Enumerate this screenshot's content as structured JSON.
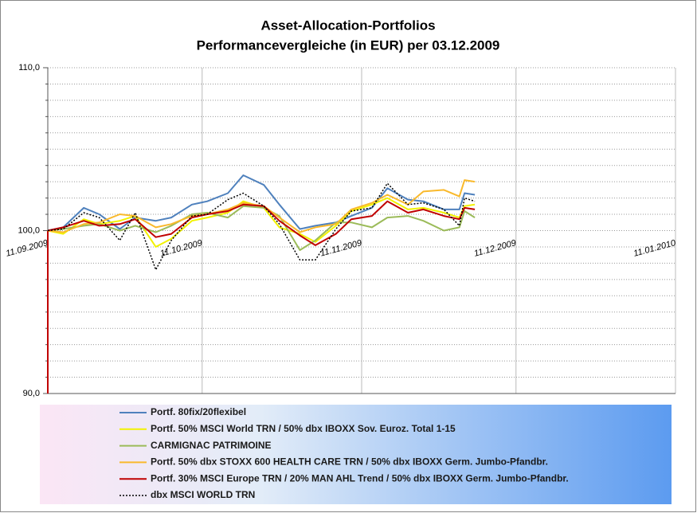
{
  "chart_data": {
    "type": "line",
    "title": "Asset-Allocation-Portfolios",
    "subtitle": "Performancevergleiche (in EUR) per 03.12.2009",
    "x": [
      "11.09.2009",
      "14.09.2009",
      "18.09.2009",
      "21.09.2009",
      "25.09.2009",
      "28.09.2009",
      "02.10.2009",
      "05.10.2009",
      "09.10.2009",
      "12.10.2009",
      "16.10.2009",
      "19.10.2009",
      "23.10.2009",
      "26.10.2009",
      "30.10.2009",
      "02.11.2009",
      "06.11.2009",
      "09.11.2009",
      "13.11.2009",
      "16.11.2009",
      "20.11.2009",
      "23.11.2009",
      "27.11.2009",
      "30.11.2009",
      "01.12.2009",
      "03.12.2009"
    ],
    "series": [
      {
        "name": "Portf. 80fix/20flexibel",
        "color": "#4f81bd",
        "style": "solid",
        "values": [
          100,
          100.2,
          101.4,
          101,
          100.1,
          100.8,
          100.6,
          100.8,
          101.6,
          101.8,
          102.3,
          103.4,
          102.8,
          101.6,
          100.1,
          100.3,
          100.5,
          100.9,
          101.4,
          102.6,
          101.9,
          101.8,
          101.3,
          101.3,
          102.3,
          102.2
        ]
      },
      {
        "name": "Portf. 50% MSCI World TRN / 50% dbx IBOXX Sov. Euroz. Total 1-15",
        "color": "#f2f200",
        "style": "solid",
        "values": [
          100,
          99.8,
          100.7,
          100.4,
          100.6,
          100.9,
          99,
          99.5,
          100.6,
          100.8,
          101.1,
          101.8,
          101.4,
          100.2,
          99.8,
          99.3,
          100.3,
          101.2,
          101.6,
          102,
          101.3,
          101.4,
          101.1,
          100.8,
          101.5,
          101.6
        ]
      },
      {
        "name": "CARMIGNAC PATRIMOINE",
        "color": "#9bbb59",
        "style": "solid",
        "values": [
          100,
          100.1,
          100.3,
          100.4,
          100,
          100.3,
          99.9,
          100.3,
          101,
          101.1,
          100.8,
          101.5,
          101.4,
          100.9,
          98.8,
          99.4,
          100.5,
          100.5,
          100.2,
          100.8,
          100.9,
          100.6,
          100,
          100.2,
          101.2,
          100.8
        ]
      },
      {
        "name": "Portf. 50% dbx STOXX 600  HEALTH CARE TRN / 50% dbx IBOXX Germ. Jumbo-Pfandbr.",
        "color": "#f9b92c",
        "style": "solid",
        "values": [
          100,
          99.9,
          100.4,
          100.5,
          101,
          100.9,
          100.2,
          100.4,
          100.9,
          101,
          101.3,
          101.7,
          101.5,
          100.8,
          99.9,
          100.2,
          100.4,
          101.3,
          101.7,
          102.2,
          101.6,
          102.4,
          102.5,
          102.1,
          103.1,
          103
        ]
      },
      {
        "name": "Portf. 30% MSCI Europe TRN / 20% MAN AHL Trend / 50% dbx IBOXX Germ. Jumbo-Pfandbr.",
        "color": "#c00000",
        "style": "solid",
        "values": [
          100,
          100.2,
          100.6,
          100.3,
          100.4,
          100.7,
          99.6,
          99.8,
          100.8,
          101,
          101.2,
          101.6,
          101.5,
          100.6,
          99.7,
          99.1,
          99.8,
          100.7,
          100.9,
          101.8,
          101.1,
          101.3,
          100.9,
          100.7,
          101.4,
          101.3
        ]
      },
      {
        "name": "dbx MSCI WORLD TRN",
        "color": "#000000",
        "style": "dotted",
        "values": [
          100,
          100.1,
          101.1,
          100.8,
          99.4,
          101.1,
          97.6,
          99.4,
          100.9,
          101,
          101.9,
          102.3,
          101.5,
          100.4,
          98.2,
          98.2,
          100.1,
          101.2,
          101.4,
          102.9,
          101.6,
          101.7,
          101.3,
          100.3,
          102,
          101.8
        ]
      }
    ],
    "xlim": [
      "11.09.2009",
      "11.01.2010"
    ],
    "xticks": [
      "11.09.2009",
      "11.10.2009",
      "11.11.2009",
      "11.12.2009",
      "11.01.2010"
    ],
    "ylim": [
      90,
      110
    ],
    "yticks": [
      {
        "value": 90,
        "label": "90,0"
      },
      {
        "value": 100,
        "label": "100,0"
      },
      {
        "value": 110,
        "label": "110,0"
      }
    ],
    "yminorticks": [
      91,
      92,
      93,
      94,
      95,
      96,
      97,
      98,
      99,
      101,
      102,
      103,
      104,
      105,
      106,
      107,
      108,
      109
    ],
    "grid": true,
    "legend": "bottom"
  }
}
